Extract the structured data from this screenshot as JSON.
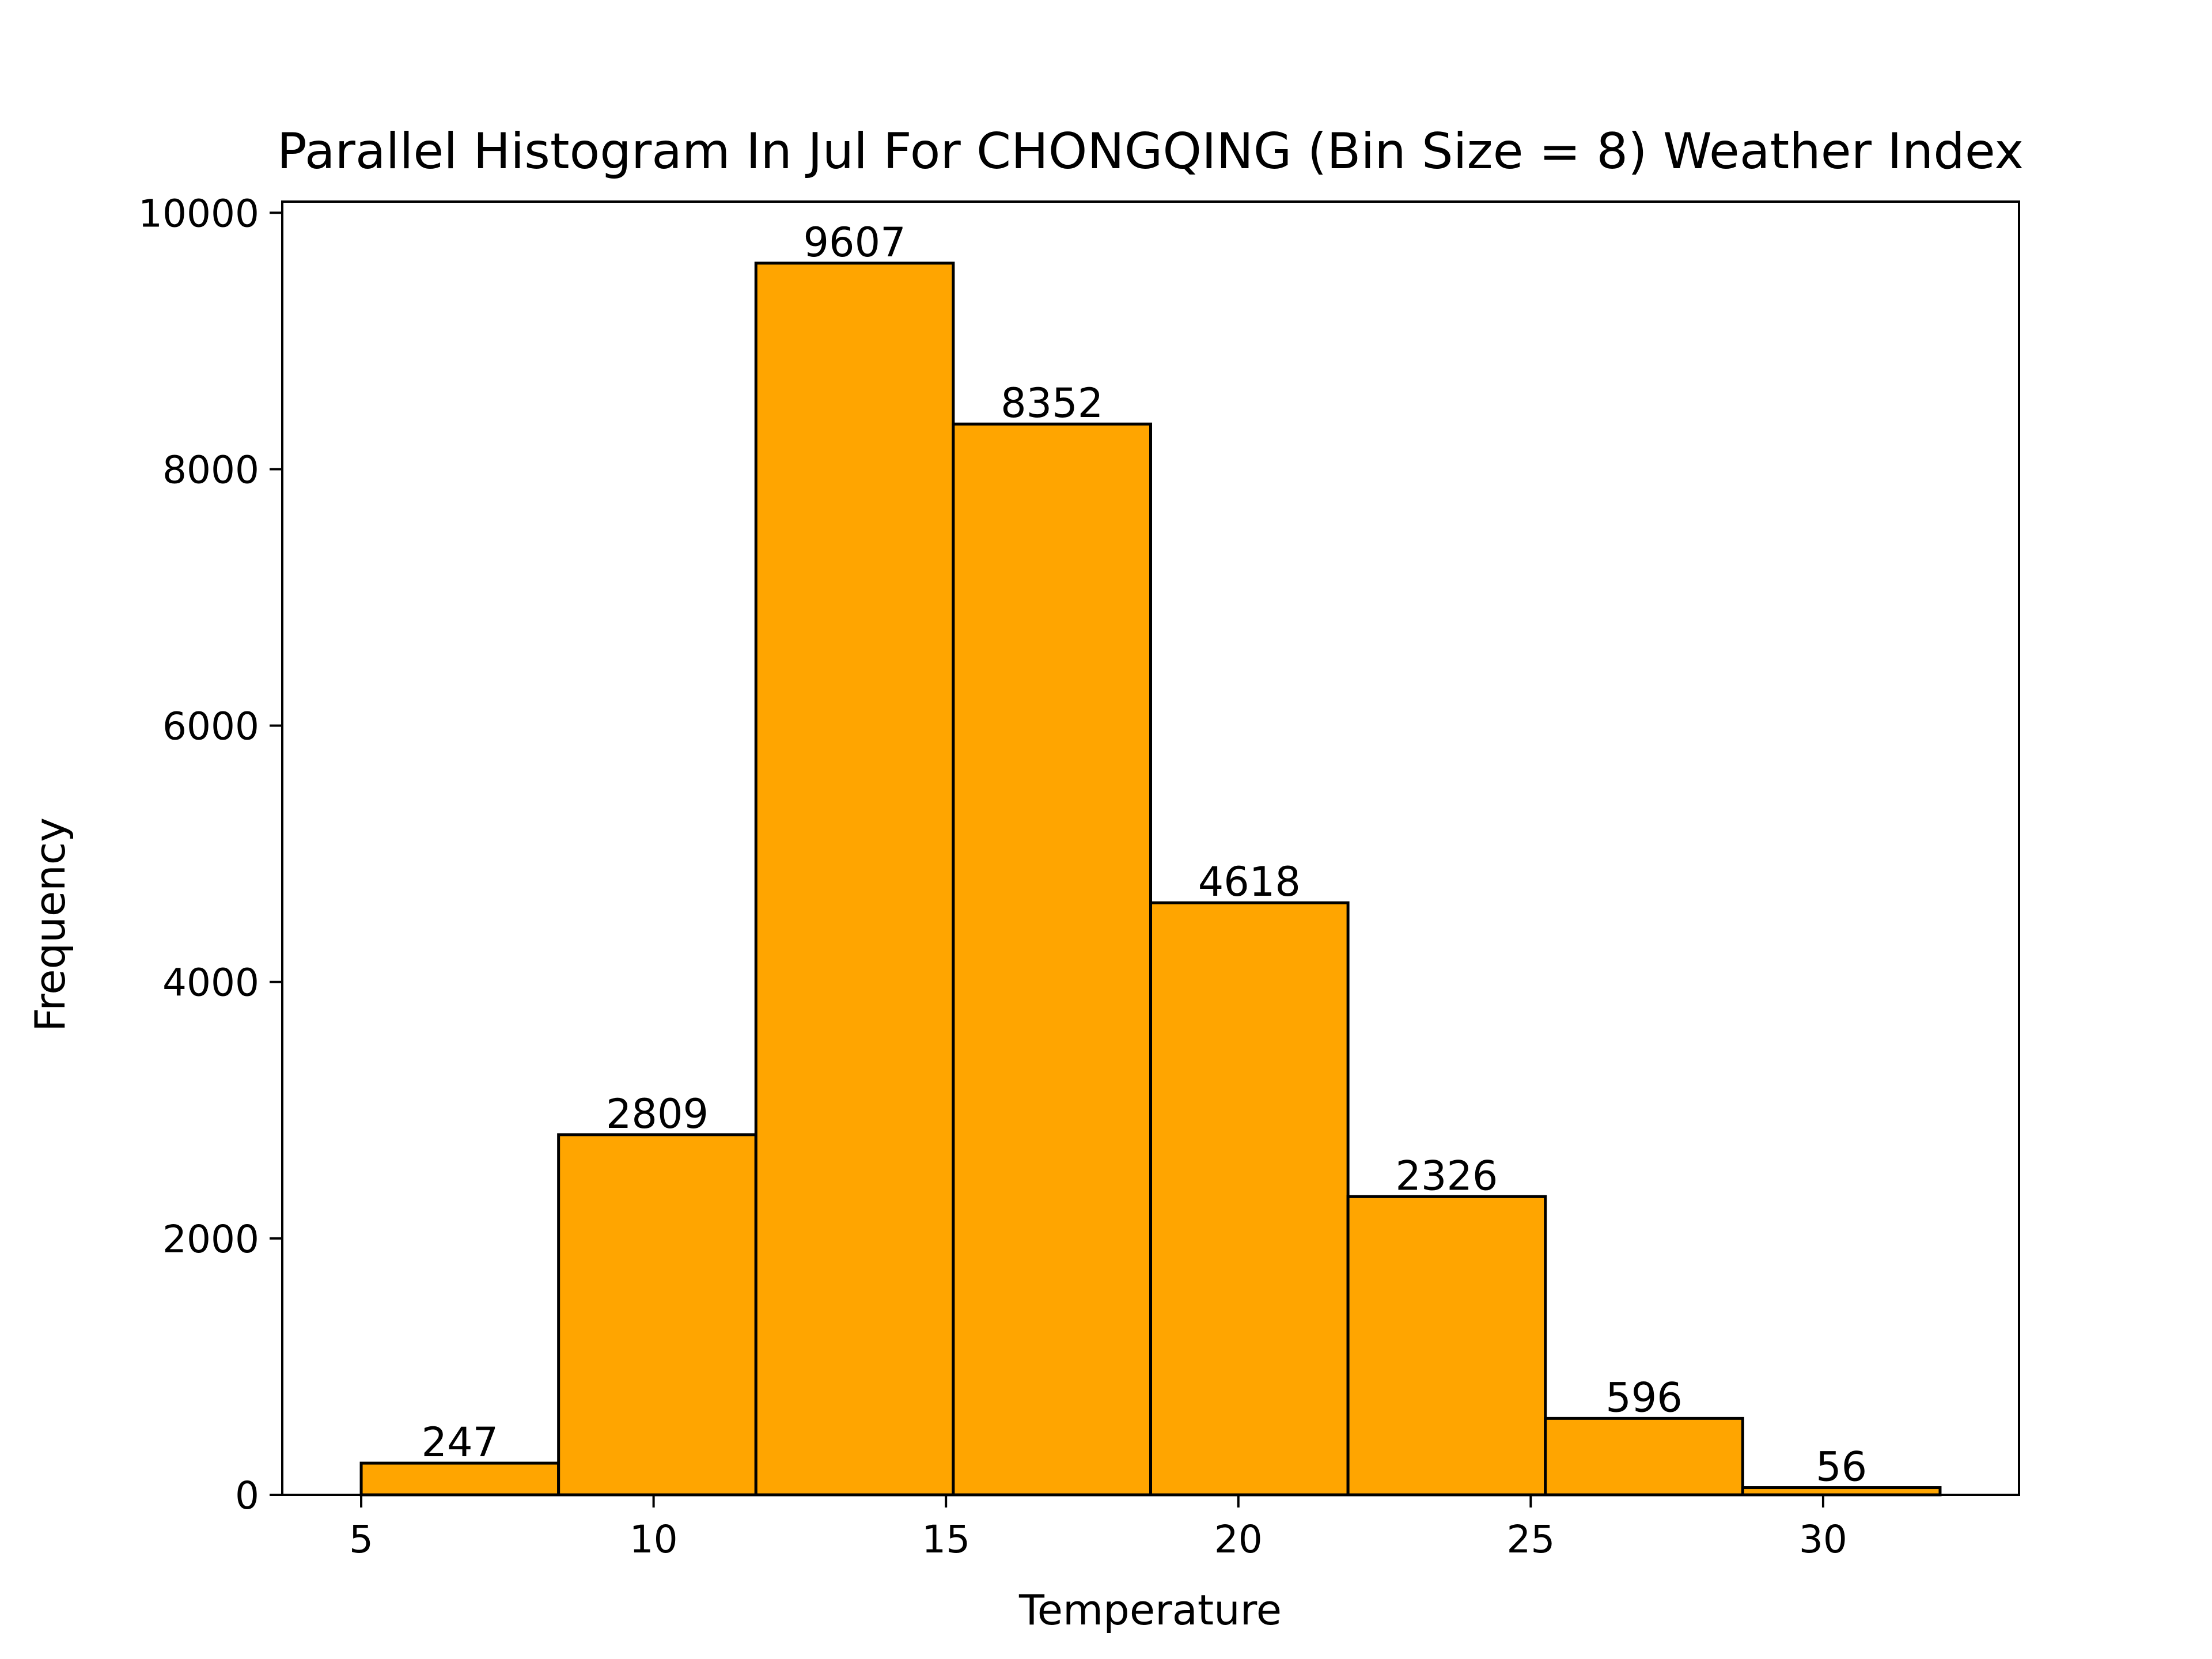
{
  "chart_data": {
    "type": "bar",
    "title": "Parallel Histogram In Jul For CHONGQING (Bin Size = 8) Weather Index",
    "xlabel": "Temperature",
    "ylabel": "Frequency",
    "bin_edges": [
      5,
      8.375,
      11.75,
      15.125,
      18.5,
      21.875,
      25.25,
      28.625,
      32
    ],
    "values": [
      247,
      2809,
      9607,
      8352,
      4618,
      2326,
      596,
      56
    ],
    "xlim": [
      3.65,
      33.35
    ],
    "ylim": [
      0,
      10087
    ],
    "xticks": [
      5,
      10,
      15,
      20,
      25,
      30
    ],
    "yticks": [
      0,
      2000,
      4000,
      6000,
      8000,
      10000
    ],
    "grid": false,
    "bar_color": "#ffa500",
    "edge_color": "#000000"
  }
}
